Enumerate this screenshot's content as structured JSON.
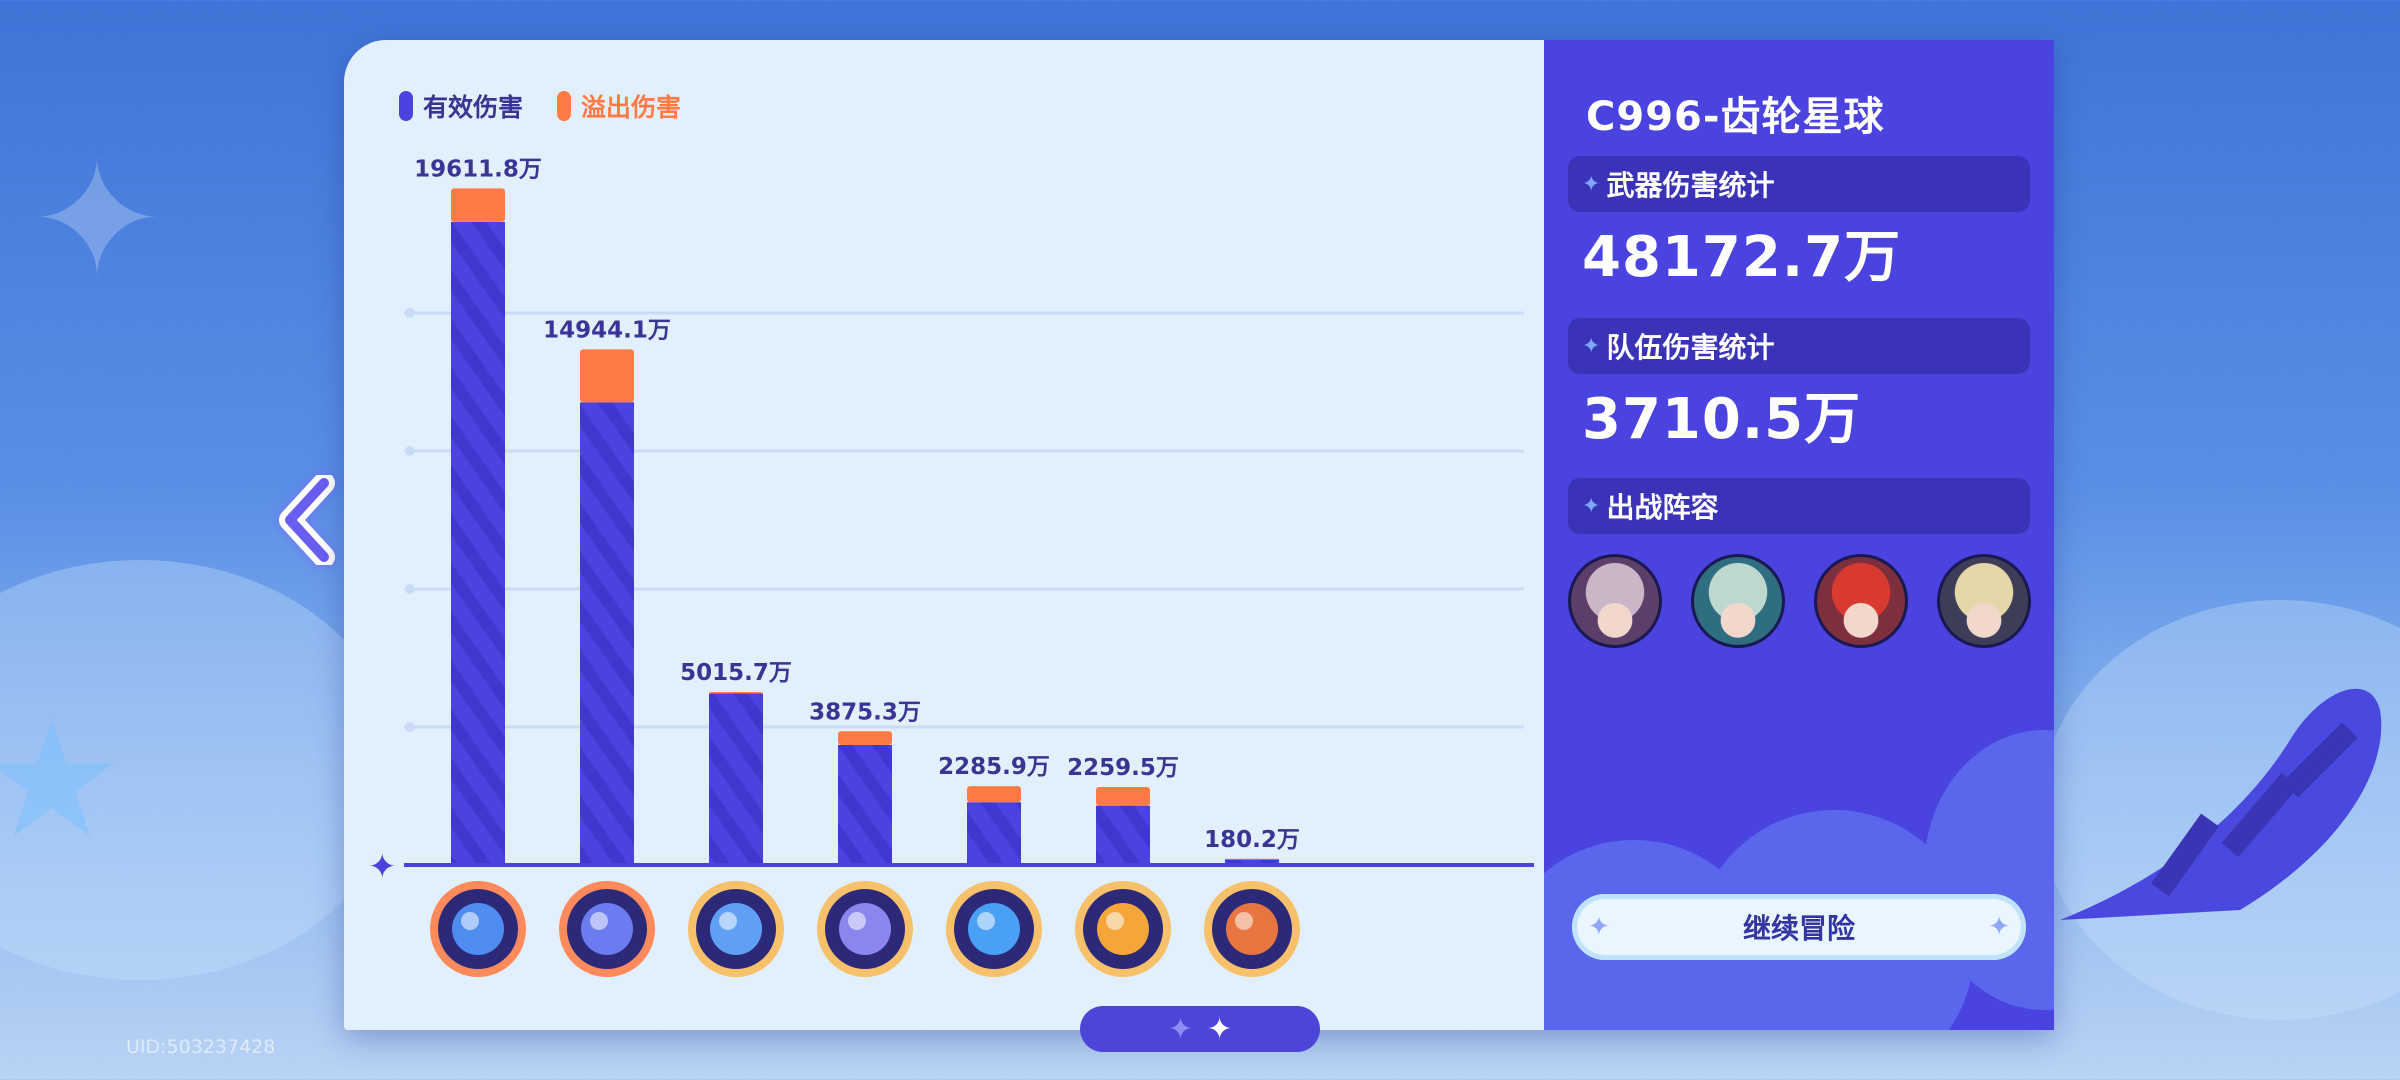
{
  "legend": {
    "effective_label": "有效伤害",
    "overflow_label": "溢出伤害",
    "effective_color": "#4a43df",
    "overflow_color": "#ff7b45"
  },
  "chart_data": {
    "type": "bar",
    "stacked": true,
    "categories": [
      "weapon-1",
      "weapon-2",
      "weapon-3",
      "weapon-4",
      "weapon-5",
      "weapon-6",
      "weapon-7"
    ],
    "labels": [
      "19611.8万",
      "14944.1万",
      "5015.7万",
      "3875.3万",
      "2285.9万",
      "2259.5万",
      "180.2万"
    ],
    "series": [
      {
        "name": "有效伤害",
        "values": [
          18640,
          13410,
          4970,
          3480,
          1820,
          1720,
          175
        ]
      },
      {
        "name": "溢出伤害",
        "values": [
          971.8,
          1534.1,
          45.7,
          395.3,
          465.9,
          539.5,
          5.2
        ]
      }
    ],
    "ylim": [
      0,
      20000
    ],
    "grid": true,
    "legend_position": "top-left"
  },
  "weapons": [
    {
      "icon": "gear-mace-icon",
      "accent": "#ff8a5c",
      "color": "#4f8cf0"
    },
    {
      "icon": "cycle-orbit-icon",
      "accent": "#ff8a5c",
      "color": "#6a7cf0"
    },
    {
      "icon": "trident-icon",
      "accent": "#f7c06a",
      "color": "#5fa0f5"
    },
    {
      "icon": "swirl-ring-icon",
      "accent": "#f7c06a",
      "color": "#8a86f0"
    },
    {
      "icon": "crescent-moon-icon",
      "accent": "#f7c06a",
      "color": "#4aa0f5"
    },
    {
      "icon": "sun-burst-icon",
      "accent": "#f7c06a",
      "color": "#f4a63a"
    },
    {
      "icon": "ticket-box-icon",
      "accent": "#f7c06a",
      "color": "#e8743f"
    }
  ],
  "stats": {
    "stage_title": "C996-齿轮星球",
    "weapon_damage_label": "武器伤害统计",
    "weapon_damage_value": "48172.7万",
    "team_damage_label": "队伍伤害统计",
    "team_damage_value": "3710.5万",
    "lineup_label": "出战阵容",
    "lineup": [
      {
        "icon": "character-witch-avatar",
        "hair": "#c9b6c6",
        "bg": "#5b3f68"
      },
      {
        "icon": "character-silver-hair-avatar",
        "hair": "#bfd8cf",
        "bg": "#2f6d80"
      },
      {
        "icon": "character-red-hair-avatar",
        "hair": "#d93a2f",
        "bg": "#7d2f3d"
      },
      {
        "icon": "character-blonde-avatar",
        "hair": "#e6d7a8",
        "bg": "#3e3d58"
      }
    ],
    "continue_label": "继续冒险"
  },
  "uid": "UID:503237428"
}
